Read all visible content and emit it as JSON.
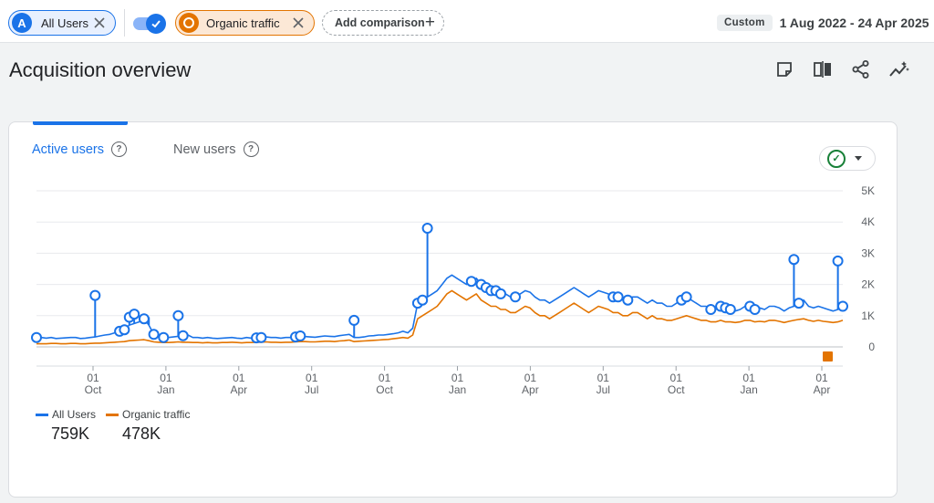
{
  "topbar": {
    "segments": [
      {
        "badge": "A",
        "label": "All Users",
        "color": "#1a73e8"
      },
      {
        "badge": "",
        "label": "Organic traffic",
        "color": "#e37400"
      }
    ],
    "add_comparison_label": "Add comparison",
    "date_range": {
      "preset": "Custom",
      "text": "1 Aug 2022 - 24 Apr 2025"
    }
  },
  "page": {
    "title": "Acquisition overview"
  },
  "actions": [
    "notes-icon",
    "compare-icon",
    "share-icon",
    "insights-icon"
  ],
  "card": {
    "tabs": [
      {
        "label": "Active users",
        "active": true
      },
      {
        "label": "New users",
        "active": false
      }
    ]
  },
  "chart_data": {
    "type": "line",
    "x_tick_labels": [
      {
        "day": "01",
        "month": "Oct"
      },
      {
        "day": "01",
        "month": "Jan"
      },
      {
        "day": "01",
        "month": "Apr"
      },
      {
        "day": "01",
        "month": "Jul"
      },
      {
        "day": "01",
        "month": "Oct"
      },
      {
        "day": "01",
        "month": "Jan"
      },
      {
        "day": "01",
        "month": "Apr"
      },
      {
        "day": "01",
        "month": "Jul"
      },
      {
        "day": "01",
        "month": "Oct"
      },
      {
        "day": "01",
        "month": "Jan"
      },
      {
        "day": "01",
        "month": "Apr"
      }
    ],
    "y_ticks": [
      "0",
      "1K",
      "2K",
      "3K",
      "4K",
      "5K"
    ],
    "ylim": [
      0,
      5000
    ],
    "grid": true,
    "legend_position": "bottom-left",
    "series": [
      {
        "name": "All Users",
        "total": "759K",
        "color": "#1a73e8",
        "weekly_values": [
          300,
          300,
          280,
          300,
          270,
          280,
          290,
          300,
          300,
          270,
          280,
          300,
          320,
          350,
          380,
          400,
          450,
          500,
          550,
          700,
          750,
          800,
          900,
          700,
          400,
          350,
          300,
          300,
          320,
          340,
          360,
          380,
          300,
          300,
          280,
          300,
          280,
          270,
          280,
          290,
          300,
          280,
          270,
          300,
          280,
          290,
          300,
          320,
          300,
          300,
          280,
          300,
          300,
          320,
          350,
          330,
          320,
          310,
          330,
          350,
          340,
          330,
          360,
          380,
          400,
          300,
          300,
          320,
          350,
          360,
          380,
          380,
          400,
          420,
          450,
          500,
          450,
          600,
          1400,
          1500,
          1600,
          1700,
          1800,
          2000,
          2200,
          2300,
          2200,
          2100,
          2000,
          2100,
          2200,
          2000,
          1900,
          1800,
          1800,
          1700,
          1700,
          1600,
          1600,
          1700,
          1800,
          1750,
          1600,
          1500,
          1500,
          1400,
          1500,
          1600,
          1700,
          1800,
          1900,
          1800,
          1700,
          1600,
          1700,
          1800,
          1750,
          1700,
          1600,
          1600,
          1500,
          1500,
          1600,
          1600,
          1500,
          1400,
          1500,
          1400,
          1400,
          1300,
          1300,
          1400,
          1500,
          1600,
          1500,
          1400,
          1300,
          1300,
          1200,
          1200,
          1300,
          1250,
          1200,
          1150,
          1200,
          1300,
          1300,
          1200,
          1250,
          1200,
          1300,
          1300,
          1250,
          1150,
          1250,
          1300,
          1400,
          1500,
          1300,
          1250,
          1300,
          1250,
          1200,
          1150,
          1200,
          1300
        ],
        "peaks": [
          {
            "week": 12,
            "value": 1650
          },
          {
            "week": 19,
            "value": 950
          },
          {
            "week": 20,
            "value": 1050
          },
          {
            "week": 23,
            "value": 950
          },
          {
            "week": 29,
            "value": 1000
          },
          {
            "week": 65,
            "value": 850
          },
          {
            "week": 80,
            "value": 3800
          },
          {
            "week": 155,
            "value": 2800
          },
          {
            "week": 164,
            "value": 2750
          }
        ]
      },
      {
        "name": "Organic traffic",
        "total": "478K",
        "color": "#e37400",
        "weekly_values": [
          100,
          100,
          100,
          110,
          110,
          100,
          100,
          110,
          110,
          100,
          100,
          110,
          120,
          120,
          130,
          140,
          150,
          160,
          170,
          200,
          210,
          220,
          230,
          200,
          160,
          150,
          140,
          140,
          150,
          160,
          150,
          150,
          140,
          140,
          130,
          140,
          130,
          130,
          140,
          140,
          150,
          140,
          130,
          140,
          140,
          150,
          150,
          160,
          150,
          150,
          140,
          150,
          150,
          160,
          170,
          170,
          160,
          160,
          170,
          180,
          180,
          170,
          190,
          200,
          220,
          170,
          180,
          190,
          200,
          210,
          220,
          230,
          240,
          260,
          280,
          300,
          280,
          380,
          900,
          1000,
          1100,
          1200,
          1300,
          1500,
          1700,
          1800,
          1700,
          1600,
          1500,
          1600,
          1700,
          1500,
          1400,
          1300,
          1300,
          1200,
          1200,
          1100,
          1100,
          1200,
          1300,
          1250,
          1100,
          1000,
          1000,
          900,
          1000,
          1100,
          1200,
          1300,
          1400,
          1300,
          1200,
          1100,
          1200,
          1300,
          1250,
          1200,
          1100,
          1100,
          1000,
          1000,
          1100,
          1100,
          1000,
          900,
          1000,
          900,
          900,
          850,
          850,
          900,
          950,
          1000,
          950,
          900,
          850,
          850,
          800,
          800,
          850,
          800,
          800,
          780,
          800,
          850,
          850,
          800,
          820,
          800,
          850,
          850,
          820,
          780,
          820,
          850,
          880,
          900,
          850,
          820,
          850,
          820,
          800,
          780,
          800,
          850
        ]
      }
    ]
  }
}
